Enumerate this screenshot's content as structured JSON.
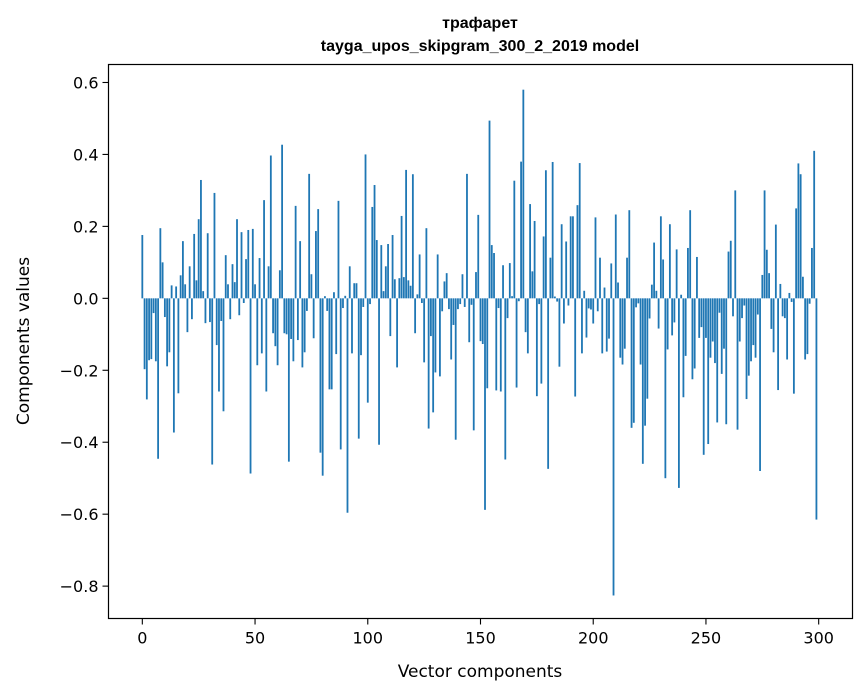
{
  "chart_data": {
    "type": "bar",
    "title_line1": "трафарет",
    "title_line2": "tayga_upos_skipgram_300_2_2019 model",
    "xlabel": "Vector components",
    "ylabel": "Components values",
    "xlim": [
      -15,
      315
    ],
    "ylim": [
      -0.89,
      0.65
    ],
    "xticks": [
      0,
      50,
      100,
      150,
      200,
      250,
      300
    ],
    "xtick_labels": [
      "0",
      "50",
      "100",
      "150",
      "200",
      "250",
      "300"
    ],
    "yticks": [
      -0.8,
      -0.6,
      -0.4,
      -0.2,
      0.0,
      0.2,
      0.4,
      0.6
    ],
    "ytick_labels": [
      "−0.8",
      "−0.6",
      "−0.4",
      "−0.2",
      "0.0",
      "0.2",
      "0.4",
      "0.6"
    ],
    "grid": false,
    "color": "#1f77b4",
    "values": [
      0.176,
      -0.197,
      -0.281,
      -0.172,
      -0.169,
      -0.041,
      -0.175,
      -0.446,
      0.195,
      0.1,
      -0.052,
      -0.189,
      -0.15,
      0.036,
      -0.373,
      0.033,
      -0.264,
      0.064,
      0.159,
      0.039,
      -0.094,
      0.089,
      -0.058,
      0.179,
      0.05,
      0.22,
      0.329,
      0.02,
      -0.069,
      0.181,
      -0.066,
      -0.462,
      0.293,
      -0.13,
      -0.259,
      -0.063,
      -0.314,
      0.12,
      0.039,
      -0.058,
      0.095,
      0.045,
      0.22,
      -0.047,
      0.184,
      -0.013,
      0.109,
      0.19,
      -0.487,
      0.193,
      0.039,
      -0.186,
      0.112,
      -0.153,
      0.273,
      -0.259,
      0.089,
      0.397,
      -0.097,
      -0.133,
      -0.186,
      0.078,
      0.427,
      -0.097,
      -0.1,
      -0.454,
      -0.113,
      -0.175,
      0.257,
      -0.116,
      0.159,
      -0.192,
      -0.15,
      -0.035,
      0.346,
      0.067,
      -0.111,
      0.187,
      0.248,
      -0.429,
      -0.493,
      0.006,
      -0.035,
      -0.253,
      -0.253,
      0.017,
      -0.155,
      0.271,
      -0.42,
      -0.027,
      0.007,
      -0.596,
      0.089,
      -0.153,
      0.042,
      0.042,
      -0.39,
      -0.158,
      -0.024,
      0.4,
      -0.29,
      -0.016,
      0.254,
      0.315,
      0.162,
      -0.407,
      0.148,
      0.02,
      0.089,
      0.151,
      -0.105,
      0.176,
      0.053,
      -0.192,
      0.056,
      0.229,
      0.059,
      0.357,
      0.05,
      0.035,
      0.345,
      -0.097,
      0.011,
      0.122,
      -0.013,
      -0.178,
      0.195,
      -0.362,
      -0.105,
      -0.317,
      -0.206,
      0.122,
      -0.217,
      -0.036,
      0.047,
      0.07,
      -0.03,
      -0.17,
      -0.074,
      -0.393,
      -0.03,
      -0.016,
      0.067,
      -0.024,
      0.346,
      -0.122,
      -0.018,
      -0.367,
      0.073,
      0.232,
      -0.119,
      -0.127,
      -0.588,
      -0.25,
      0.494,
      0.148,
      0.126,
      -0.256,
      -0.027,
      -0.259,
      0.092,
      -0.448,
      -0.055,
      0.098,
      0.006,
      0.327,
      -0.248,
      -0.008,
      0.38,
      0.58,
      -0.094,
      -0.153,
      0.262,
      0.075,
      0.215,
      -0.272,
      -0.016,
      -0.237,
      0.172,
      0.356,
      -0.474,
      0.113,
      0.379,
      0.005,
      -0.009,
      -0.19,
      0.206,
      -0.07,
      0.158,
      -0.02,
      0.228,
      0.228,
      -0.273,
      0.259,
      0.376,
      -0.153,
      0.021,
      -0.109,
      -0.028,
      -0.031,
      -0.07,
      0.225,
      -0.036,
      0.113,
      -0.153,
      0.03,
      -0.148,
      -0.112,
      0.097,
      -0.826,
      0.233,
      0.044,
      -0.165,
      -0.184,
      -0.14,
      0.113,
      0.245,
      -0.36,
      -0.346,
      -0.025,
      -0.014,
      -0.184,
      -0.46,
      -0.354,
      -0.279,
      -0.056,
      0.038,
      0.155,
      0.021,
      -0.084,
      0.228,
      0.108,
      -0.5,
      -0.142,
      0.206,
      -0.103,
      -0.067,
      0.136,
      -0.527,
      0.01,
      -0.275,
      -0.16,
      0.14,
      0.245,
      -0.225,
      -0.195,
      0.115,
      -0.11,
      -0.08,
      -0.435,
      -0.11,
      -0.405,
      -0.165,
      -0.12,
      -0.18,
      -0.345,
      -0.04,
      -0.21,
      -0.14,
      -0.35,
      0.13,
      0.16,
      -0.05,
      0.3,
      -0.365,
      -0.12,
      -0.055,
      -0.02,
      -0.28,
      -0.215,
      -0.175,
      -0.13,
      -0.165,
      -0.045,
      -0.48,
      0.065,
      0.3,
      0.135,
      0.07,
      -0.085,
      -0.15,
      0.205,
      -0.255,
      0.04,
      -0.05,
      -0.055,
      -0.17,
      0.015,
      -0.01,
      -0.265,
      0.25,
      0.375,
      0.345,
      0.06,
      -0.17,
      -0.155,
      -0.015,
      0.14,
      0.41,
      -0.615
    ]
  }
}
